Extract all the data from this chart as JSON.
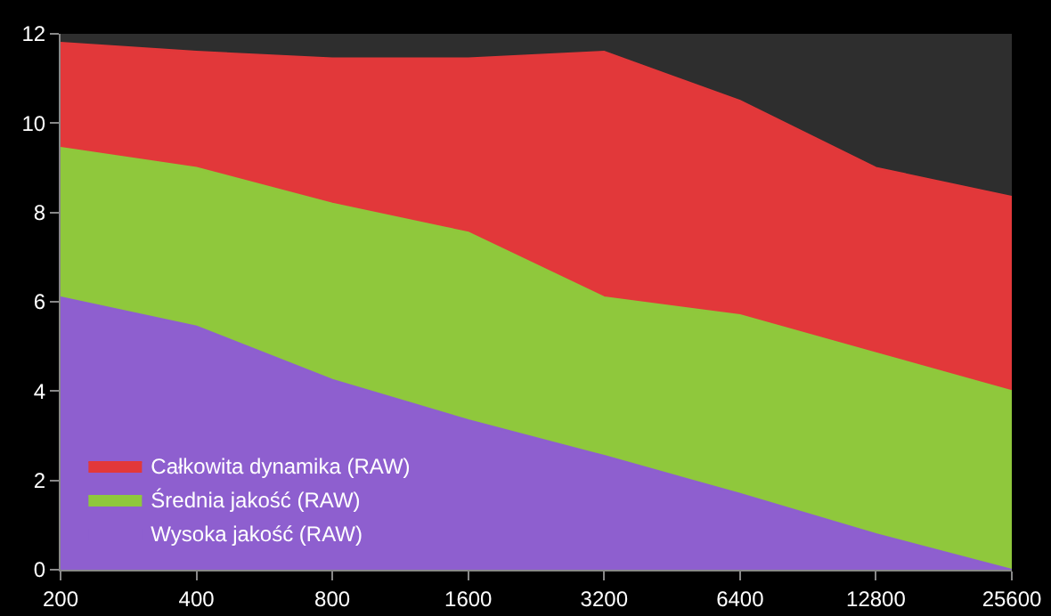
{
  "chart_data": {
    "type": "area",
    "categories": [
      "200",
      "400",
      "800",
      "1600",
      "3200",
      "6400",
      "12800",
      "25600"
    ],
    "series": [
      {
        "name": "Całkowita dynamika (RAW)",
        "color": "#e2383a",
        "values": [
          11.8,
          11.6,
          11.45,
          11.45,
          11.6,
          10.5,
          9.0,
          8.35
        ]
      },
      {
        "name": "Średnia jakość (RAW)",
        "color": "#8fc83c",
        "values": [
          9.45,
          9.0,
          8.2,
          7.55,
          6.1,
          5.7,
          4.85,
          4.0
        ]
      },
      {
        "name": "Wysoka jakość (RAW)",
        "color": "#8e5fcf",
        "values": [
          6.1,
          5.45,
          4.25,
          3.35,
          2.55,
          1.7,
          0.8,
          0.0
        ]
      }
    ],
    "ylim": [
      0,
      12
    ],
    "yticks": [
      0,
      2,
      4,
      6,
      8,
      10,
      12
    ],
    "legend": "bottom left"
  }
}
